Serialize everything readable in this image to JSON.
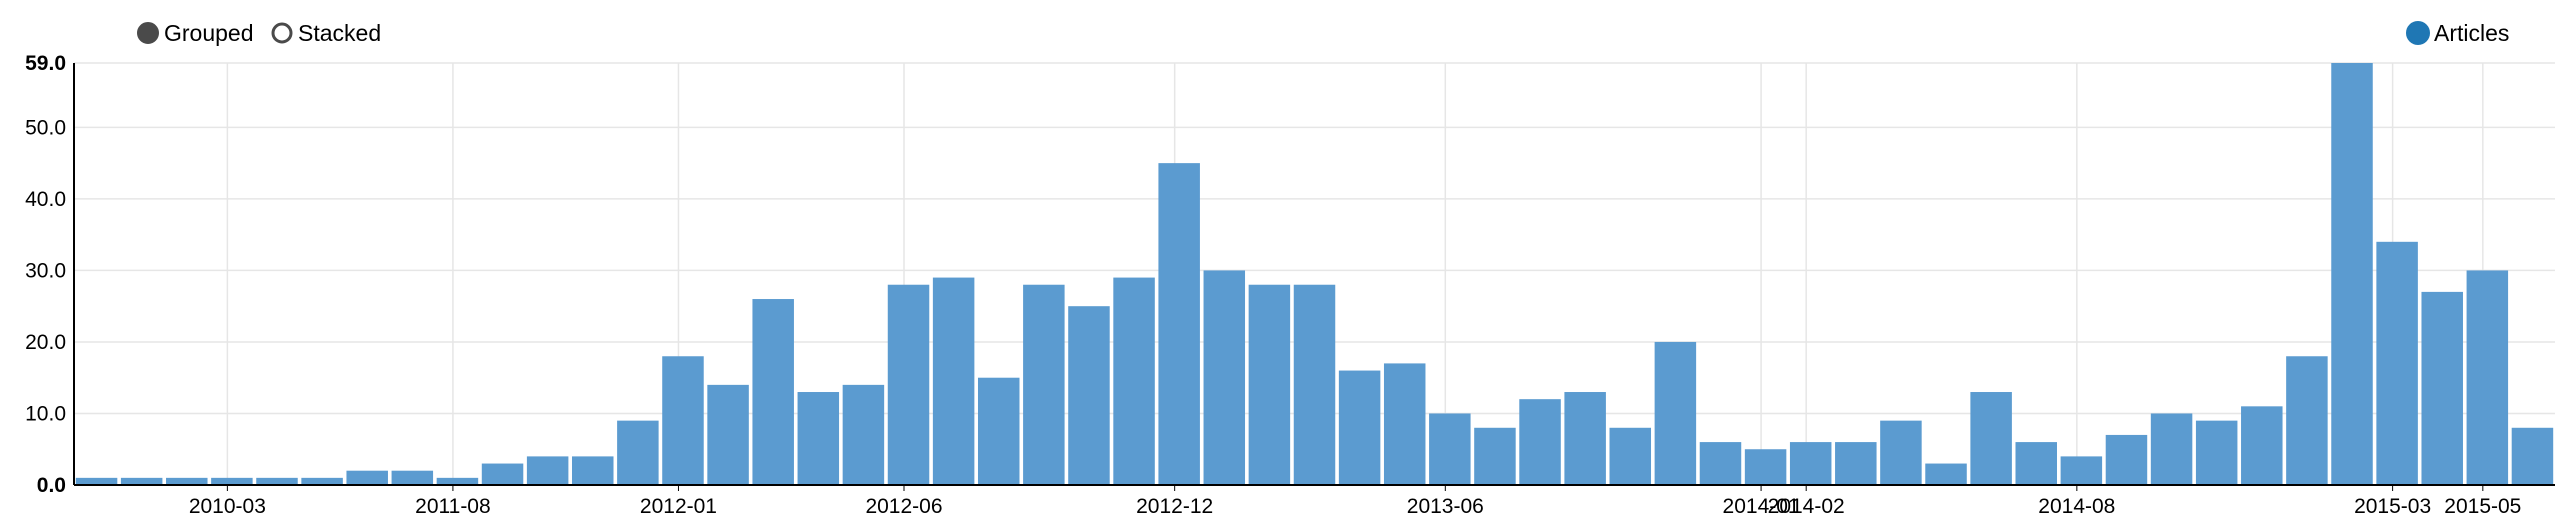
{
  "controls": {
    "grouped_label": "Grouped",
    "stacked_label": "Stacked",
    "selected": "Grouped"
  },
  "legend": [
    {
      "name": "Articles",
      "color": "#1f77b4"
    }
  ],
  "chart_data": {
    "type": "bar",
    "title": "",
    "xlabel": "",
    "ylabel": "",
    "ylim": [
      0,
      59
    ],
    "yticks": [
      "0.0",
      "10.0",
      "20.0",
      "30.0",
      "40.0",
      "50.0",
      "59.0"
    ],
    "xticks": [
      "2010-03",
      "2011-08",
      "2012-01",
      "2012-06",
      "2012-12",
      "2013-06",
      "2014-01",
      "2014-02",
      "2014-08",
      "2015-03",
      "2015-05"
    ],
    "grid": true,
    "legend_position": "top-right",
    "bar_color": "#5b9bd0",
    "series": [
      {
        "name": "Articles",
        "values": [
          1,
          1,
          1,
          1,
          1,
          1,
          2,
          2,
          1,
          3,
          4,
          4,
          9,
          18,
          14,
          26,
          13,
          14,
          28,
          29,
          15,
          28,
          25,
          29,
          45,
          30,
          28,
          28,
          16,
          17,
          10,
          8,
          12,
          13,
          8,
          20,
          6,
          5,
          6,
          6,
          9,
          3,
          13,
          6,
          4,
          7,
          10,
          9,
          11,
          18,
          59,
          34,
          27,
          30,
          8
        ]
      }
    ]
  }
}
